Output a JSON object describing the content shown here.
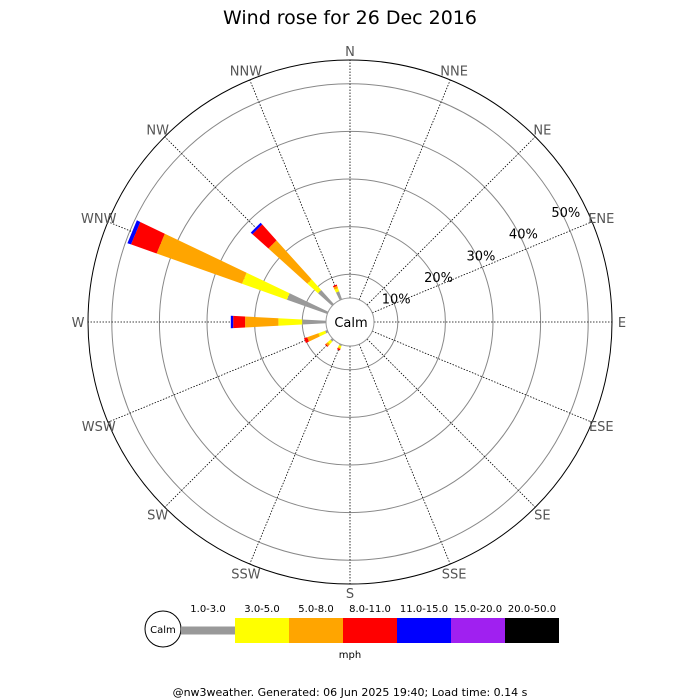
{
  "title": "Wind rose for 26 Dec 2016",
  "footer": "@nw3weather. Generated: 06 Jun 2025 19:40; Load time: 0.14 s",
  "unit": "mph",
  "calm_label": "Calm",
  "chart_data": {
    "type": "windrose",
    "title": "Wind rose for 26 Dec 2016",
    "directions": [
      "N",
      "NNE",
      "NE",
      "ENE",
      "E",
      "ESE",
      "SE",
      "SSE",
      "S",
      "SSW",
      "SW",
      "WSW",
      "W",
      "WNW",
      "NW",
      "NNW"
    ],
    "radial_ticks": [
      "10%",
      "20%",
      "30%",
      "40%",
      "50%"
    ],
    "radial_tick_values": [
      10,
      20,
      30,
      40,
      50
    ],
    "calm_percent": 5,
    "speed_bins": [
      {
        "label": "1.0-3.0",
        "color": "#999999"
      },
      {
        "label": "3.0-5.0",
        "color": "#ffff00"
      },
      {
        "label": "5.0-8.0",
        "color": "#ffa500"
      },
      {
        "label": "8.0-11.0",
        "color": "#ff0000"
      },
      {
        "label": "11.0-15.0",
        "color": "#0000ff"
      },
      {
        "label": "15.0-20.0",
        "color": "#a020f0"
      },
      {
        "label": "20.0-50.0",
        "color": "#000000"
      }
    ],
    "cumulative_percent": {
      "NNW": [
        6.8,
        7.5,
        8.0,
        8.3,
        8.3,
        8.3,
        8.3
      ],
      "NW": [
        9.0,
        12.0,
        23.0,
        27.5,
        28.0,
        28.0,
        28.0
      ],
      "WNW": [
        14.0,
        24.0,
        43.0,
        48.7,
        49.5,
        49.5,
        49.5
      ],
      "W": [
        10.0,
        15.0,
        22.0,
        24.5,
        25.0,
        25.0,
        25.0
      ],
      "WSW": [
        5.5,
        7.0,
        9.5,
        10.2,
        10.2,
        10.2,
        10.2
      ],
      "SW": [
        5.5,
        6.3,
        6.8,
        7.0,
        7.0,
        7.0,
        7.0
      ],
      "SSW": [
        5.3,
        5.8,
        6.0,
        6.3,
        6.3,
        6.3,
        6.3
      ]
    }
  }
}
